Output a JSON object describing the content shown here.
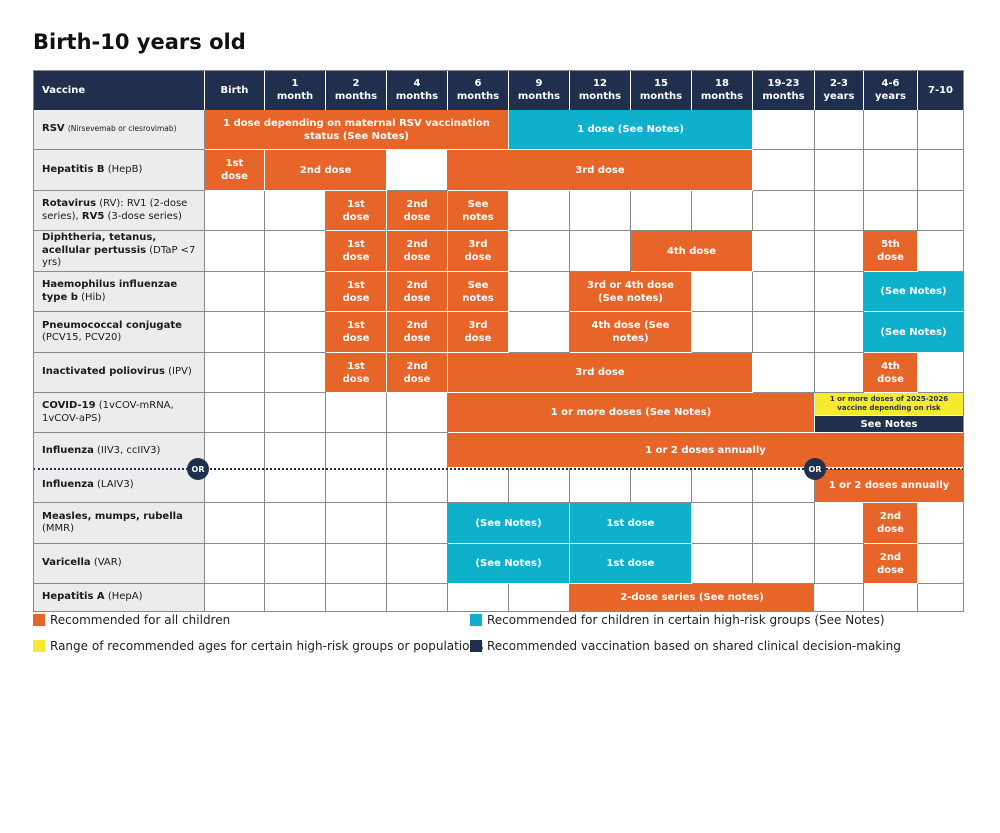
{
  "title": "Birth-10 years old",
  "header": {
    "first": "Vaccine",
    "columns": [
      "Birth",
      "1\nmonth",
      "2\nmonths",
      "4\nmonths",
      "6\nmonths",
      "9\nmonths",
      "12\nmonths",
      "15\nmonths",
      "18\nmonths",
      "19-23\nmonths",
      "2-3\nyears",
      "4-6\nyears",
      "7-10"
    ]
  },
  "rows": [
    {
      "name": "RSV",
      "detail": "(Nirsevemab or clesrovimab)",
      "detail_small": true
    },
    {
      "name": "Hepatitis B",
      "detail": "(HepB)"
    },
    {
      "name": "Rotavirus",
      "detail": "(RV): RV1 (2-dose series), ",
      "name2": "RV5",
      "detail2": " (3-dose series)"
    },
    {
      "name": "Diphtheria, tetanus, acellular pertussis",
      "detail": "(DTaP <7 yrs)"
    },
    {
      "name": "Haemophilus influenzae type b",
      "detail": "(Hib)"
    },
    {
      "name": "Pneumococcal conjugate",
      "detail": "(PCV15, PCV20)"
    },
    {
      "name": "Inactivated poliovirus",
      "detail": "(IPV)"
    },
    {
      "name": "COVID-19",
      "detail": "(1vCOV-mRNA, 1vCOV-aPS)"
    },
    {
      "name": "Influenza",
      "detail": "(IIV3, ccIIV3)"
    },
    {
      "name": "Influenza",
      "detail": "(LAIV3)"
    },
    {
      "name": "Measles, mumps, rubella",
      "detail": "(MMR)"
    },
    {
      "name": "Varicella",
      "detail": "(VAR)"
    },
    {
      "name": "Hepatitis A",
      "detail": "(HepA)"
    }
  ],
  "or_label": "OR",
  "bars": [
    {
      "row": 0,
      "c0": 0,
      "c1": 5,
      "color": "orange",
      "text": "1 dose depending on maternal RSV vaccination\nstatus (See Notes)"
    },
    {
      "row": 0,
      "c0": 5,
      "c1": 9,
      "color": "teal",
      "text": "1 dose (See Notes)"
    },
    {
      "row": 1,
      "c0": 0,
      "c1": 1,
      "color": "orange",
      "text": "1st\ndose"
    },
    {
      "row": 1,
      "c0": 1,
      "c1": 3,
      "color": "orange",
      "text": "2nd dose"
    },
    {
      "row": 1,
      "c0": 4,
      "c1": 9,
      "color": "orange",
      "text": "3rd dose"
    },
    {
      "row": 2,
      "c0": 2,
      "c1": 3,
      "color": "orange",
      "text": "1st\ndose"
    },
    {
      "row": 2,
      "c0": 3,
      "c1": 4,
      "color": "orange",
      "text": "2nd\ndose"
    },
    {
      "row": 2,
      "c0": 4,
      "c1": 5,
      "color": "orange",
      "text": "See\nnotes"
    },
    {
      "row": 3,
      "c0": 2,
      "c1": 3,
      "color": "orange",
      "text": "1st\ndose"
    },
    {
      "row": 3,
      "c0": 3,
      "c1": 4,
      "color": "orange",
      "text": "2nd\ndose"
    },
    {
      "row": 3,
      "c0": 4,
      "c1": 5,
      "color": "orange",
      "text": "3rd\ndose"
    },
    {
      "row": 3,
      "c0": 7,
      "c1": 9,
      "color": "orange",
      "text": "4th dose"
    },
    {
      "row": 3,
      "c0": 11,
      "c1": 12,
      "color": "orange",
      "text": "5th\ndose"
    },
    {
      "row": 4,
      "c0": 2,
      "c1": 3,
      "color": "orange",
      "text": "1st\ndose"
    },
    {
      "row": 4,
      "c0": 3,
      "c1": 4,
      "color": "orange",
      "text": "2nd\ndose"
    },
    {
      "row": 4,
      "c0": 4,
      "c1": 5,
      "color": "orange",
      "text": "See\nnotes"
    },
    {
      "row": 4,
      "c0": 6,
      "c1": 8,
      "color": "orange",
      "text": "3rd or 4th dose\n(See notes)"
    },
    {
      "row": 4,
      "c0": 11,
      "c1": 13,
      "color": "teal",
      "text": "(See Notes)"
    },
    {
      "row": 5,
      "c0": 2,
      "c1": 3,
      "color": "orange",
      "text": "1st\ndose"
    },
    {
      "row": 5,
      "c0": 3,
      "c1": 4,
      "color": "orange",
      "text": "2nd\ndose"
    },
    {
      "row": 5,
      "c0": 4,
      "c1": 5,
      "color": "orange",
      "text": "3rd\ndose"
    },
    {
      "row": 5,
      "c0": 6,
      "c1": 8,
      "color": "orange",
      "text": "4th dose (See\nnotes)"
    },
    {
      "row": 5,
      "c0": 11,
      "c1": 13,
      "color": "teal",
      "text": "(See Notes)"
    },
    {
      "row": 6,
      "c0": 2,
      "c1": 3,
      "color": "orange",
      "text": "1st\ndose"
    },
    {
      "row": 6,
      "c0": 3,
      "c1": 4,
      "color": "orange",
      "text": "2nd\ndose"
    },
    {
      "row": 6,
      "c0": 4,
      "c1": 9,
      "color": "orange",
      "text": "3rd dose"
    },
    {
      "row": 6,
      "c0": 11,
      "c1": 12,
      "color": "orange",
      "text": "4th\ndose"
    },
    {
      "row": 7,
      "c0": 4,
      "c1": 10,
      "color": "orange",
      "text": "1 or more doses (See Notes)"
    },
    {
      "row": 7,
      "c0": 10,
      "c1": 13,
      "color": "yellow",
      "text": "1 or more doses of 2025-2026\nvaccine depending on risk",
      "part": "top"
    },
    {
      "row": 7,
      "c0": 10,
      "c1": 13,
      "color": "navy",
      "text": "See Notes",
      "part": "bottom"
    },
    {
      "row": 8,
      "c0": 4,
      "c1": 13,
      "color": "orange",
      "text": "1 or 2 doses annually"
    },
    {
      "row": 9,
      "c0": 10,
      "c1": 13,
      "color": "orange",
      "text": "1 or 2 doses annually"
    },
    {
      "row": 10,
      "c0": 4,
      "c1": 6,
      "color": "teal",
      "text": "(See Notes)"
    },
    {
      "row": 10,
      "c0": 6,
      "c1": 8,
      "color": "teal",
      "text": "1st dose"
    },
    {
      "row": 10,
      "c0": 11,
      "c1": 12,
      "color": "orange",
      "text": "2nd\ndose"
    },
    {
      "row": 11,
      "c0": 4,
      "c1": 6,
      "color": "teal",
      "text": "(See Notes)"
    },
    {
      "row": 11,
      "c0": 6,
      "c1": 8,
      "color": "teal",
      "text": "1st dose"
    },
    {
      "row": 11,
      "c0": 11,
      "c1": 12,
      "color": "orange",
      "text": "2nd\ndose"
    },
    {
      "row": 12,
      "c0": 6,
      "c1": 10,
      "color": "orange",
      "text": "2-dose series (See notes)"
    }
  ],
  "legend": [
    {
      "color": "#e8652a",
      "text": "Recommended for all children"
    },
    {
      "color": "#0eb0cc",
      "text": "Recommended for children in certain high-risk groups (See Notes)"
    },
    {
      "color": "#f6ea2f",
      "text": "Range of recommended ages for certain high-risk groups or populations"
    },
    {
      "color": "#1f2f4d",
      "text": "Recommended vaccination based on shared clinical decision-making"
    }
  ]
}
